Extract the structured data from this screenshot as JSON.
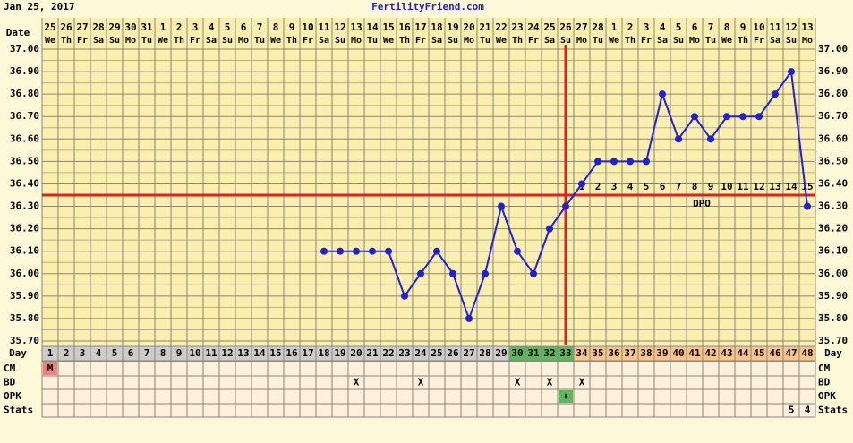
{
  "chart_data": {
    "type": "line",
    "date_label": "Jan 25, 2017",
    "title": "FertilityFriend.com",
    "date_row_label": "Date",
    "dates": [
      25,
      26,
      27,
      28,
      29,
      30,
      31,
      1,
      2,
      3,
      4,
      5,
      6,
      7,
      8,
      9,
      10,
      11,
      12,
      13,
      14,
      15,
      16,
      17,
      18,
      19,
      20,
      21,
      22,
      23,
      24,
      25,
      26,
      27,
      28,
      1,
      2,
      3,
      4,
      5,
      6,
      7,
      8,
      9,
      10,
      11,
      12,
      13
    ],
    "weekdays": [
      "We",
      "Th",
      "Fr",
      "Sa",
      "Su",
      "Mo",
      "Tu",
      "We",
      "Th",
      "Fr",
      "Sa",
      "Su",
      "Mo",
      "Tu",
      "We",
      "Th",
      "Fr",
      "Sa",
      "Su",
      "Mo",
      "Tu",
      "We",
      "Th",
      "Fr",
      "Sa",
      "Su",
      "Mo",
      "Tu",
      "We",
      "Th",
      "Fr",
      "Sa",
      "Su",
      "Mo",
      "Tu",
      "We",
      "Th",
      "Fr",
      "Sa",
      "Su",
      "Mo",
      "Tu",
      "We",
      "Th",
      "Fr",
      "Sa",
      "Su",
      "Mo"
    ],
    "day_row_label": "Day",
    "categories": [
      1,
      2,
      3,
      4,
      5,
      6,
      7,
      8,
      9,
      10,
      11,
      12,
      13,
      14,
      15,
      16,
      17,
      18,
      19,
      20,
      21,
      22,
      23,
      24,
      25,
      26,
      27,
      28,
      29,
      30,
      31,
      32,
      33,
      34,
      35,
      36,
      37,
      38,
      39,
      40,
      41,
      42,
      43,
      44,
      45,
      46,
      47,
      48
    ],
    "day_colors": [
      "#cccccc",
      "#cccccc",
      "#cccccc",
      "#cccccc",
      "#cccccc",
      "#cccccc",
      "#cccccc",
      "#cccccc",
      "#cccccc",
      "#cccccc",
      "#cccccc",
      "#cccccc",
      "#cccccc",
      "#cccccc",
      "#cccccc",
      "#cccccc",
      "#cccccc",
      "#cccccc",
      "#cccccc",
      "#cccccc",
      "#cccccc",
      "#cccccc",
      "#cccccc",
      "#cccccc",
      "#cccccc",
      "#cccccc",
      "#cccccc",
      "#cccccc",
      "#cccccc",
      "#5cb85c",
      "#5cb85c",
      "#5cb85c",
      "#5cb85c",
      "#f9c48a",
      "#f9c48a",
      "#f9c48a",
      "#f9c48a",
      "#f9c48a",
      "#f9c48a",
      "#f9c48a",
      "#f9c48a",
      "#f9c48a",
      "#f9c48a",
      "#f9c48a",
      "#f9c48a",
      "#f9c48a",
      "#f9c48a",
      "#f9c48a"
    ],
    "series": [
      {
        "color": "#1f1fdc",
        "values": [
          null,
          null,
          null,
          null,
          null,
          null,
          null,
          null,
          null,
          null,
          null,
          null,
          null,
          null,
          null,
          null,
          null,
          36.1,
          36.1,
          36.1,
          36.1,
          36.1,
          35.9,
          36.0,
          36.1,
          36.0,
          35.8,
          36.0,
          36.3,
          36.1,
          36.0,
          36.2,
          36.3,
          36.4,
          36.5,
          36.5,
          36.5,
          36.5,
          36.8,
          36.6,
          36.7,
          36.6,
          36.7,
          36.7,
          36.7,
          36.8,
          36.9,
          36.3
        ]
      }
    ],
    "ylim": [
      35.7,
      37.0
    ],
    "yticks": [
      {
        "value": 37.0,
        "label": "37.00"
      },
      {
        "value": 36.9,
        "label": "36.90"
      },
      {
        "value": 36.8,
        "label": "36.80"
      },
      {
        "value": 36.7,
        "label": "36.70"
      },
      {
        "value": 36.6,
        "label": "36.60"
      },
      {
        "value": 36.5,
        "label": "36.50"
      },
      {
        "value": 36.4,
        "label": "36.40"
      },
      {
        "value": 36.3,
        "label": "36.30"
      },
      {
        "value": 36.2,
        "label": "36.20"
      },
      {
        "value": 36.1,
        "label": "36.10"
      },
      {
        "value": 36.0,
        "label": "36.00"
      },
      {
        "value": 35.9,
        "label": "35.90"
      },
      {
        "value": 35.8,
        "label": "35.80"
      },
      {
        "value": 35.7,
        "label": "35.70"
      }
    ],
    "coverline": 36.35,
    "coverline_color": "#dd2222",
    "ovulation_day": 33,
    "dpo_label": "DPO",
    "dpo": [
      null,
      null,
      null,
      null,
      null,
      null,
      null,
      null,
      null,
      null,
      null,
      null,
      null,
      null,
      null,
      null,
      null,
      null,
      null,
      null,
      null,
      null,
      null,
      null,
      null,
      null,
      null,
      null,
      null,
      null,
      null,
      null,
      null,
      1,
      2,
      3,
      4,
      5,
      6,
      7,
      8,
      9,
      10,
      11,
      12,
      13,
      14,
      15
    ],
    "rows": [
      {
        "label": "CM",
        "cells": [
          "M",
          null,
          null,
          null,
          null,
          null,
          null,
          null,
          null,
          null,
          null,
          null,
          null,
          null,
          null,
          null,
          null,
          null,
          null,
          null,
          null,
          null,
          null,
          null,
          null,
          null,
          null,
          null,
          null,
          null,
          null,
          null,
          null,
          null,
          null,
          null,
          null,
          null,
          null,
          null,
          null,
          null,
          null,
          null,
          null,
          null,
          null,
          null
        ],
        "highlight": "#f08080"
      },
      {
        "label": "BD",
        "cells": [
          null,
          null,
          null,
          null,
          null,
          null,
          null,
          null,
          null,
          null,
          null,
          null,
          null,
          null,
          null,
          null,
          null,
          null,
          null,
          "X",
          null,
          null,
          null,
          "X",
          null,
          null,
          null,
          null,
          null,
          "X",
          null,
          "X",
          null,
          "X",
          null,
          null,
          null,
          null,
          null,
          null,
          null,
          null,
          null,
          null,
          null,
          null,
          null,
          null
        ]
      },
      {
        "label": "OPK",
        "cells": [
          null,
          null,
          null,
          null,
          null,
          null,
          null,
          null,
          null,
          null,
          null,
          null,
          null,
          null,
          null,
          null,
          null,
          null,
          null,
          null,
          null,
          null,
          null,
          null,
          null,
          null,
          null,
          null,
          null,
          null,
          null,
          null,
          "+",
          null,
          null,
          null,
          null,
          null,
          null,
          null,
          null,
          null,
          null,
          null,
          null,
          null,
          null,
          null
        ],
        "highlight": "#5cb85c"
      },
      {
        "label": "Stats",
        "cells": [
          null,
          null,
          null,
          null,
          null,
          null,
          null,
          null,
          null,
          null,
          null,
          null,
          null,
          null,
          null,
          null,
          null,
          null,
          null,
          null,
          null,
          null,
          null,
          null,
          null,
          null,
          null,
          null,
          null,
          null,
          null,
          null,
          null,
          null,
          null,
          null,
          null,
          null,
          null,
          null,
          null,
          null,
          null,
          null,
          null,
          null,
          5,
          4
        ]
      }
    ]
  }
}
